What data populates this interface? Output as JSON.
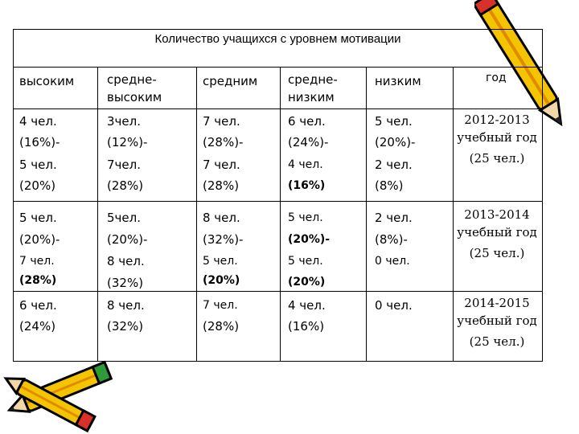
{
  "title": "Количество учащихся с уровнем мотивации",
  "headers": [
    "высоким",
    "средне-\nвысоким",
    "средним",
    "средне-\nнизким",
    "низким",
    "год"
  ],
  "rows": [
    {
      "cells": [
        [
          "4 чел.",
          "(16%)-",
          "5 чел.",
          "(20%)"
        ],
        [
          "3чел.",
          "(12%)-",
          "7чел.",
          "(28%)"
        ],
        [
          "7 чел.",
          "(28%)-",
          "7 чел.",
          "(28%)"
        ],
        [
          "6 чел.",
          "(24%)-",
          "4 чел.",
          "(16%)"
        ],
        [
          "5 чел.",
          "(20%)-",
          "2 чел.",
          "(8%)"
        ]
      ],
      "year": "2012-2013\nучебный год",
      "count": "(25 чел.)"
    },
    {
      "cells": [
        [
          "5 чел.",
          "(20%)-",
          "7 чел.",
          "(28%)"
        ],
        [
          "5чел.",
          "(20%)-",
          "8 чел.",
          "(32%)"
        ],
        [
          "8 чел.",
          "(32%)-",
          "5 чел.",
          "(20%)"
        ],
        [
          "5 чел.",
          "(20%)-",
          "5 чел.",
          "(20%)"
        ],
        [
          "2 чел.",
          "(8%)-",
          "0 чел.",
          ""
        ]
      ],
      "year": "2013-2014\nучебный год",
      "count": "(25 чел.)"
    },
    {
      "cells": [
        [
          "6 чел.",
          "(24%)"
        ],
        [
          "8 чел.",
          "(32%)"
        ],
        [
          "7 чел.",
          "(28%)"
        ],
        [
          "4 чел.",
          "(16%)"
        ],
        [
          "0 чел.",
          ""
        ]
      ],
      "year": "2014-2015\nучебный год",
      "count": "(25 чел.)"
    }
  ]
}
